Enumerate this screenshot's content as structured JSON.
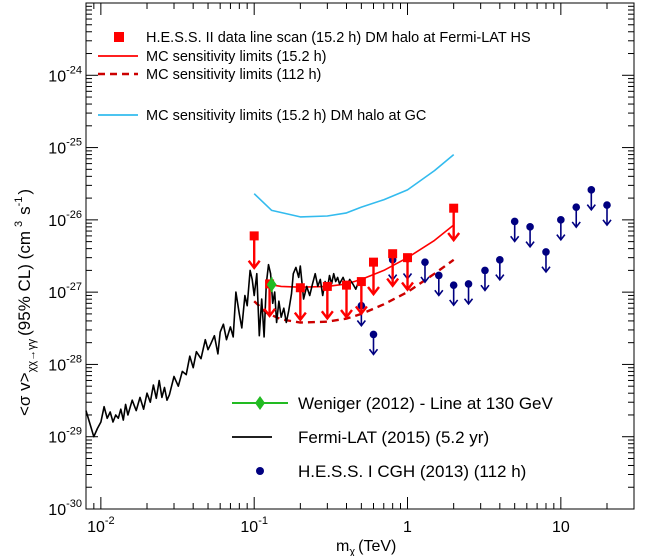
{
  "chart_data": {
    "type": "scatter",
    "xlabel": "m",
    "xlabel_sub": "χ",
    "xlabel_unit": "(TeV)",
    "ylabel": "<σ v>",
    "ylabel_sub": "χχ→γγ",
    "ylabel_unit": "(95% CL) (cm",
    "ylabel_unit_sup1": "3",
    "ylabel_unit_mid": "s",
    "ylabel_unit_sup2": "-1",
    "ylabel_unit_end": ")",
    "x_scale": "log",
    "y_scale": "log",
    "xlim": [
      0.008,
      30
    ],
    "ylim": [
      1e-30,
      1e-23
    ],
    "x_ticks": [
      {
        "value": 0.01,
        "base": "10",
        "exp": "-2"
      },
      {
        "value": 0.1,
        "base": "10",
        "exp": "-1"
      },
      {
        "value": 1,
        "base": "1",
        "exp": ""
      },
      {
        "value": 10,
        "base": "10",
        "exp": ""
      }
    ],
    "y_ticks": [
      {
        "value": 1e-30,
        "base": "10",
        "exp": "-30"
      },
      {
        "value": 1e-29,
        "base": "10",
        "exp": "-29"
      },
      {
        "value": 1e-28,
        "base": "10",
        "exp": "-28"
      },
      {
        "value": 1e-27,
        "base": "10",
        "exp": "-27"
      },
      {
        "value": 1e-26,
        "base": "10",
        "exp": "-26"
      },
      {
        "value": 1e-25,
        "base": "10",
        "exp": "-25"
      },
      {
        "value": 1e-24,
        "base": "10",
        "exp": "-24"
      }
    ],
    "legend_top": [
      {
        "label": "H.E.S.S. II data line scan (15.2 h) DM halo at Fermi-LAT HS",
        "symbol": "square",
        "color": "#ff0000"
      },
      {
        "label": "MC sensitivity limits (15.2 h)",
        "symbol": "line",
        "color": "#ff0000"
      },
      {
        "label": "MC sensitivity limits (112 h)",
        "symbol": "dashed",
        "color": "#cc0000"
      },
      {
        "label": "MC sensitivity limits (15.2 h) DM halo at GC",
        "symbol": "line",
        "color": "#33bbee"
      }
    ],
    "legend_bottom": [
      {
        "label": "Weniger (2012) - Line at 130 GeV",
        "symbol": "diamond-line",
        "color": "#22bb22"
      },
      {
        "label": "Fermi-LAT (2015) (5.2 yr)",
        "symbol": "line",
        "color": "#000000"
      },
      {
        "label": "H.E.S.S. I CGH (2013) (112 h)",
        "symbol": "circle",
        "color": "#000080"
      }
    ],
    "series": [
      {
        "name": "H.E.S.S. II data line scan (15.2 h) DM halo at Fermi-LAT HS",
        "kind": "upper-limit-squares",
        "color": "#ff0000",
        "x": [
          0.1,
          0.126,
          0.2,
          0.3,
          0.4,
          0.5,
          0.6,
          0.8,
          1.0,
          2.0
        ],
        "y": [
          6e-27,
          1.3e-27,
          1.15e-27,
          1.2e-27,
          1.25e-27,
          1.4e-27,
          2.6e-27,
          3.4e-27,
          3e-27,
          1.45e-26
        ]
      },
      {
        "name": "MC sensitivity limits (15.2 h)",
        "kind": "line",
        "color": "#ff0000",
        "x": [
          0.12,
          0.15,
          0.2,
          0.3,
          0.4,
          0.5,
          0.7,
          1.0,
          1.5,
          2.0
        ],
        "y": [
          1.3e-27,
          1.2e-27,
          1.17e-27,
          1.2e-27,
          1.3e-27,
          1.5e-27,
          2e-27,
          3e-27,
          5.2e-27,
          8.5e-27
        ]
      },
      {
        "name": "MC sensitivity limits (112 h)",
        "kind": "dashed",
        "color": "#cc0000",
        "x": [
          0.1,
          0.12,
          0.15,
          0.2,
          0.3,
          0.4,
          0.5,
          0.7,
          1.0,
          1.5,
          2.0
        ],
        "y": [
          7.5e-28,
          5.2e-28,
          4.2e-28,
          3.8e-28,
          3.9e-28,
          4.3e-28,
          5e-28,
          6.8e-28,
          1e-27,
          1.8e-27,
          2.8e-27
        ]
      },
      {
        "name": "MC sensitivity limits (15.2 h) DM halo at GC",
        "kind": "line",
        "color": "#33bbee",
        "x": [
          0.1,
          0.13,
          0.2,
          0.3,
          0.4,
          0.5,
          0.7,
          1.0,
          1.5,
          2.0
        ],
        "y": [
          2.3e-26,
          1.35e-26,
          1.1e-26,
          1.13e-26,
          1.25e-26,
          1.5e-26,
          1.9e-26,
          2.6e-26,
          4.8e-26,
          8e-26
        ]
      },
      {
        "name": "Fermi-LAT (2015) (5.2 yr)",
        "kind": "line",
        "color": "#000000",
        "x": [
          0.008,
          0.0085,
          0.009,
          0.0095,
          0.01,
          0.0105,
          0.011,
          0.0115,
          0.012,
          0.0125,
          0.013,
          0.0135,
          0.014,
          0.0145,
          0.015,
          0.016,
          0.017,
          0.018,
          0.019,
          0.02,
          0.021,
          0.022,
          0.023,
          0.024,
          0.025,
          0.026,
          0.027,
          0.028,
          0.03,
          0.032,
          0.034,
          0.036,
          0.038,
          0.04,
          0.042,
          0.045,
          0.048,
          0.05,
          0.052,
          0.055,
          0.058,
          0.06,
          0.063,
          0.066,
          0.07,
          0.073,
          0.076,
          0.08,
          0.083,
          0.087,
          0.09,
          0.094,
          0.097,
          0.1,
          0.104,
          0.108,
          0.112,
          0.116,
          0.12,
          0.124,
          0.128,
          0.132,
          0.136,
          0.14,
          0.145,
          0.15,
          0.156,
          0.162,
          0.168,
          0.175,
          0.18,
          0.187,
          0.195,
          0.2,
          0.21,
          0.22,
          0.23,
          0.24,
          0.25,
          0.26,
          0.27,
          0.28,
          0.29,
          0.3,
          0.31,
          0.32,
          0.33,
          0.34,
          0.35,
          0.36,
          0.38,
          0.4,
          0.42,
          0.44,
          0.46,
          0.48,
          0.5
        ],
        "y": [
          2.3e-29,
          1.5e-29,
          1e-29,
          1.3e-29,
          1.6e-29,
          2.6e-29,
          1.8e-29,
          2.2e-29,
          1.6e-29,
          2e-29,
          1.8e-29,
          2.4e-29,
          1.7e-29,
          2.8e-29,
          2e-29,
          3.2e-29,
          2.3e-29,
          3.5e-29,
          2.4e-29,
          4e-29,
          3e-29,
          5.2e-29,
          3.4e-29,
          6e-29,
          3.5e-29,
          4.8e-29,
          3.2e-29,
          3.8e-29,
          6.8e-29,
          5e-29,
          8e-29,
          7.2e-29,
          1.3e-28,
          9e-29,
          1.5e-28,
          1.2e-28,
          2.2e-28,
          1.6e-28,
          1.9e-28,
          2.5e-28,
          1.4e-28,
          2.8e-28,
          3.6e-28,
          2.2e-28,
          3.3e-28,
          2.4e-28,
          1e-27,
          5e-28,
          3.2e-28,
          9e-28,
          6.5e-28,
          2e-27,
          1.5e-27,
          9e-28,
          1.8e-27,
          2.5e-28,
          8e-28,
          2.4e-28,
          1.3e-27,
          2.4e-27,
          1.8e-27,
          7e-28,
          1e-27,
          3.8e-28,
          7.5e-28,
          4.5e-28,
          6e-28,
          3.8e-28,
          5.5e-28,
          9.5e-28,
          1.8e-27,
          2.2e-27,
          1.6e-27,
          2.3e-27,
          8e-28,
          1.2e-27,
          9e-28,
          1.3e-27,
          1.8e-27,
          1.2e-27,
          1.5e-27,
          9e-28,
          1.4e-27,
          1.1e-27,
          1.7e-27,
          1.3e-27,
          1.8e-27,
          1.4e-27,
          1.6e-27,
          1.3e-27,
          1.6e-27,
          1.2e-27,
          1.5e-27,
          1.3e-27,
          1.1e-27,
          1.4e-27,
          1.2e-27
        ]
      },
      {
        "name": "Weniger (2012) - Line at 130 GeV",
        "kind": "point-with-error",
        "color": "#22bb22",
        "x": [
          0.13
        ],
        "y": [
          1.27e-27
        ],
        "y_low": [
          1e-27
        ],
        "y_high": [
          1.6e-27
        ]
      },
      {
        "name": "H.E.S.S. I CGH (2013) (112 h)",
        "kind": "upper-limit-circles",
        "color": "#000080",
        "x": [
          0.5,
          0.6,
          0.8,
          1.0,
          1.3,
          1.6,
          2.0,
          2.5,
          3.2,
          4.0,
          5.0,
          6.3,
          8.0,
          10.0,
          12.6,
          15.8,
          20.0
        ],
        "y": [
          6.5e-28,
          2.6e-28,
          2.8e-27,
          2.9e-27,
          2.6e-27,
          1.7e-27,
          1.25e-27,
          1.3e-27,
          2e-27,
          2.8e-27,
          9.5e-27,
          8e-27,
          3.6e-27,
          1e-26,
          1.5e-26,
          2.6e-26,
          1.6e-26
        ]
      }
    ]
  }
}
